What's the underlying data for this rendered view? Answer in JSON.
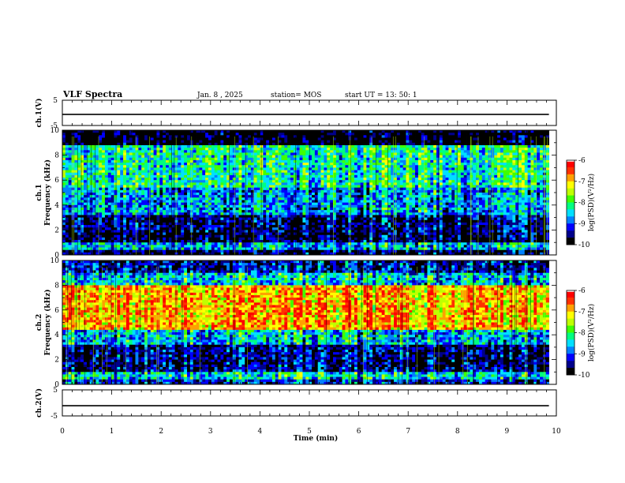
{
  "header": {
    "title": "VLF Spectra",
    "date": "Jan. 8 , 2025",
    "station": "station= MOS",
    "start": "start UT = 13: 50: 1"
  },
  "chart_data": [
    {
      "type": "line",
      "name": "ch1-voltage",
      "ylabel": "ch.1(V)",
      "ylim": [
        -5,
        5
      ],
      "yticks": [
        "5",
        "-5"
      ],
      "x": [
        0,
        9.85
      ],
      "values": [
        -0.6,
        -0.6
      ]
    },
    {
      "type": "heatmap",
      "name": "ch1-spectrogram",
      "ylabel": "ch.1\nFrequency (kHz)",
      "ylabel_line1": "ch.1",
      "ylabel_line2": "Frequency (kHz)",
      "ylim": [
        0,
        10
      ],
      "yticks": [
        "0",
        "2",
        "4",
        "6",
        "8",
        "10"
      ],
      "xlim": [
        0,
        10
      ],
      "bands_khz_log": [
        {
          "f": [
            0.0,
            0.4
          ],
          "level": -9.6
        },
        {
          "f": [
            0.4,
            1.0
          ],
          "level": -8.6
        },
        {
          "f": [
            1.0,
            1.8
          ],
          "level": -9.7
        },
        {
          "f": [
            1.8,
            3.2
          ],
          "level": -9.5
        },
        {
          "f": [
            3.2,
            5.5
          ],
          "level": -8.7
        },
        {
          "f": [
            5.5,
            8.8
          ],
          "level": -8.2
        },
        {
          "f": [
            8.8,
            10.0
          ],
          "level": -10
        }
      ],
      "colorbar": {
        "label": "log(PSD)(V²/Hz)",
        "ticks": [
          "-6",
          "-7",
          "-8",
          "-9",
          "-10"
        ],
        "range": [
          -10,
          -6
        ]
      }
    },
    {
      "type": "heatmap",
      "name": "ch2-spectrogram",
      "ylabel": "ch.2\nFrequency (kHz)",
      "ylabel_line1": "ch.2",
      "ylabel_line2": "Frequency (kHz)",
      "ylim": [
        0,
        10
      ],
      "yticks": [
        "0",
        "2",
        "4",
        "6",
        "8",
        "10"
      ],
      "xlim": [
        0,
        10
      ],
      "bands_khz_log": [
        {
          "f": [
            0.0,
            0.4
          ],
          "level": -9.2
        },
        {
          "f": [
            0.4,
            1.0
          ],
          "level": -8.4
        },
        {
          "f": [
            1.0,
            3.2
          ],
          "level": -9.5
        },
        {
          "f": [
            3.2,
            4.5
          ],
          "level": -8.6
        },
        {
          "f": [
            4.5,
            8.0
          ],
          "level": -6.9
        },
        {
          "f": [
            8.0,
            9.0
          ],
          "level": -8.5
        },
        {
          "f": [
            9.0,
            10.0
          ],
          "level": -9.3
        }
      ],
      "colorbar": {
        "label": "log(PSD)(V²/Hz)",
        "ticks": [
          "-6",
          "-7",
          "-8",
          "-9",
          "-10"
        ],
        "range": [
          -10,
          -6
        ]
      }
    },
    {
      "type": "line",
      "name": "ch2-voltage",
      "ylabel": "ch.2(V)",
      "ylim": [
        -5,
        5
      ],
      "yticks": [
        "5",
        "-5"
      ],
      "x": [
        0,
        9.85
      ],
      "values": [
        -1.1,
        -1.1
      ]
    }
  ],
  "xaxis": {
    "label": "Time (min)",
    "ticks": [
      "0",
      "1",
      "2",
      "3",
      "4",
      "5",
      "6",
      "7",
      "8",
      "9",
      "10"
    ],
    "xlim": [
      0,
      10
    ]
  },
  "colormap": [
    "#000000",
    "#00008b",
    "#0000ff",
    "#0080ff",
    "#00e0ff",
    "#00ff80",
    "#40ff00",
    "#c0ff00",
    "#ffff00",
    "#ffa000",
    "#ff3000",
    "#ff0000",
    "#ffffff"
  ]
}
